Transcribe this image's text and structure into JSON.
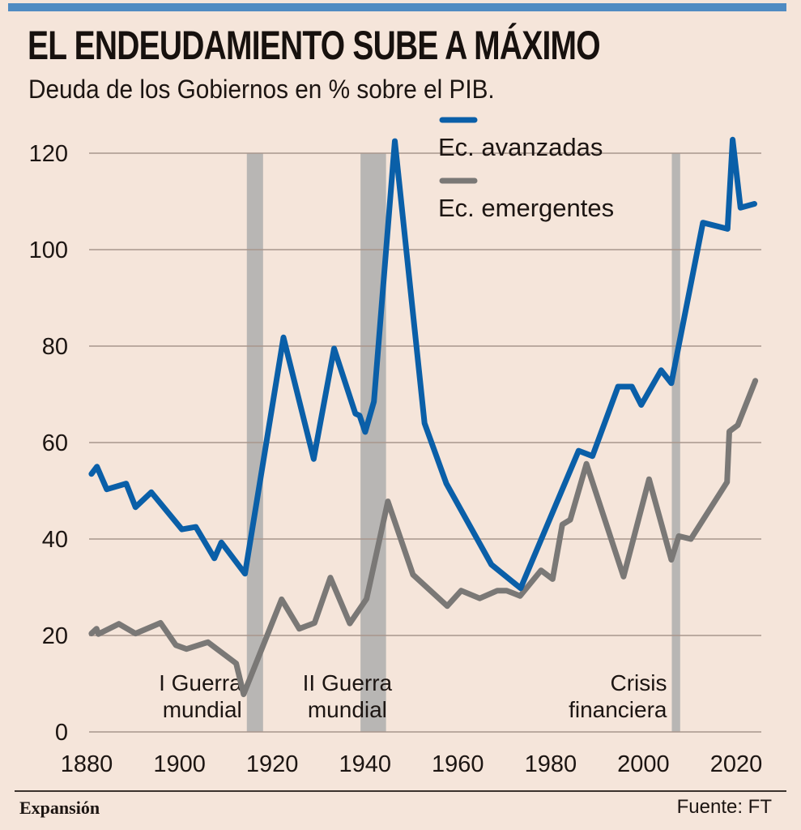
{
  "header": {
    "title": "EL ENDEUDAMIENTO SUBE A MÁXIMO",
    "subtitle": "Deuda de los Gobiernos en % sobre el PIB."
  },
  "footer": {
    "brand": "Expansión",
    "source": "Fuente: FT"
  },
  "colors": {
    "background": "#f5e5da",
    "top_bar": "#4f8bc2",
    "advanced": "#0a5fa8",
    "emerging": "#7a7876",
    "band": "#b8b6b4",
    "grid": "#a8968c"
  },
  "chart_data": {
    "type": "line",
    "title": "EL ENDEUDAMIENTO SUBE A MÁXIMO",
    "subtitle": "Deuda de los Gobiernos en % sobre el PIB.",
    "xlabel": "",
    "ylabel": "",
    "xlim": [
      1880,
      2024
    ],
    "ylim": [
      0,
      120
    ],
    "x_ticks": [
      1880,
      1900,
      1920,
      1940,
      1960,
      1980,
      2000,
      2020
    ],
    "x_tick_labels": [
      "1880",
      "1900",
      "1920",
      "1940",
      "1960",
      "1980",
      "2000",
      "2020"
    ],
    "y_ticks": [
      0,
      20,
      40,
      60,
      80,
      100,
      120
    ],
    "y_tick_labels": [
      "0",
      "20",
      "40",
      "60",
      "80",
      "100",
      "120"
    ],
    "grid": "horizontal",
    "legend_position": "top-right",
    "series": [
      {
        "name": "Ec. avanzadas",
        "color": "#0a5fa8",
        "points": [
          [
            1880.5,
            53.5
          ],
          [
            1881.7,
            55
          ],
          [
            1883.8,
            50.3
          ],
          [
            1888,
            51.5
          ],
          [
            1890,
            46.6
          ],
          [
            1893.4,
            49.7
          ],
          [
            1900,
            42
          ],
          [
            1903,
            42.5
          ],
          [
            1907,
            36
          ],
          [
            1908.5,
            39.3
          ],
          [
            1913.6,
            32.8
          ],
          [
            1921.9,
            81.8
          ],
          [
            1928.4,
            56.6
          ],
          [
            1932.8,
            79.5
          ],
          [
            1937.4,
            66
          ],
          [
            1938.3,
            65.6
          ],
          [
            1939.5,
            62.2
          ],
          [
            1941.4,
            68.5
          ],
          [
            1945.9,
            122.5
          ],
          [
            1952.3,
            64
          ],
          [
            1957,
            51.5
          ],
          [
            1966.7,
            34.7
          ],
          [
            1973,
            29.8
          ],
          [
            1985.5,
            58.3
          ],
          [
            1988.5,
            57.2
          ],
          [
            1994,
            71.6
          ],
          [
            1997,
            71.6
          ],
          [
            1999,
            67.8
          ],
          [
            2003.3,
            75
          ],
          [
            2005.5,
            72.3
          ],
          [
            2012.3,
            105.6
          ],
          [
            2017.6,
            104.3
          ],
          [
            2018.7,
            122.8
          ],
          [
            2020.4,
            108.7
          ],
          [
            2023.4,
            109.5
          ]
        ]
      },
      {
        "name": "Ec. emergentes",
        "color": "#7a7876",
        "points": [
          [
            1880.5,
            20.4
          ],
          [
            1881.6,
            21.4
          ],
          [
            1882,
            20.3
          ],
          [
            1886.4,
            22.4
          ],
          [
            1890,
            20.4
          ],
          [
            1895.4,
            22.6
          ],
          [
            1898.7,
            18
          ],
          [
            1901,
            17.2
          ],
          [
            1905.6,
            18.6
          ],
          [
            1911.7,
            14.2
          ],
          [
            1913.3,
            7.8
          ],
          [
            1921.5,
            27.5
          ],
          [
            1925.3,
            21.4
          ],
          [
            1928.6,
            22.6
          ],
          [
            1932,
            32
          ],
          [
            1936.2,
            22.5
          ],
          [
            1939.8,
            27.6
          ],
          [
            1944.4,
            47.8
          ],
          [
            1949.8,
            32.6
          ],
          [
            1957.2,
            26.1
          ],
          [
            1960.2,
            29.3
          ],
          [
            1964.2,
            27.7
          ],
          [
            1968,
            29.3
          ],
          [
            1970,
            29.3
          ],
          [
            1972.9,
            28.2
          ],
          [
            1977.4,
            33.5
          ],
          [
            1979.9,
            31.7
          ],
          [
            1982,
            43
          ],
          [
            1983.7,
            44
          ],
          [
            1987.2,
            55.6
          ],
          [
            1995.2,
            32.2
          ],
          [
            2000.7,
            52.4
          ],
          [
            2005.5,
            35.7
          ],
          [
            2007.1,
            40.6
          ],
          [
            2009.7,
            40
          ],
          [
            2017.5,
            51.8
          ],
          [
            2018,
            62.3
          ],
          [
            2019.8,
            63.6
          ],
          [
            2023.6,
            72.8
          ]
        ]
      }
    ],
    "shaded_periods": [
      {
        "label_lines": [
          "I Guerra",
          "mundial"
        ],
        "start": 1914,
        "end": 1917.5,
        "label_align": "right"
      },
      {
        "label_lines": [
          "II Guerra",
          "mundial"
        ],
        "start": 1938.5,
        "end": 1944,
        "label_align": "middle"
      },
      {
        "label_lines": [
          "Crisis",
          "financiera"
        ],
        "start": 2005.6,
        "end": 2007.4,
        "label_align": "right"
      }
    ]
  }
}
